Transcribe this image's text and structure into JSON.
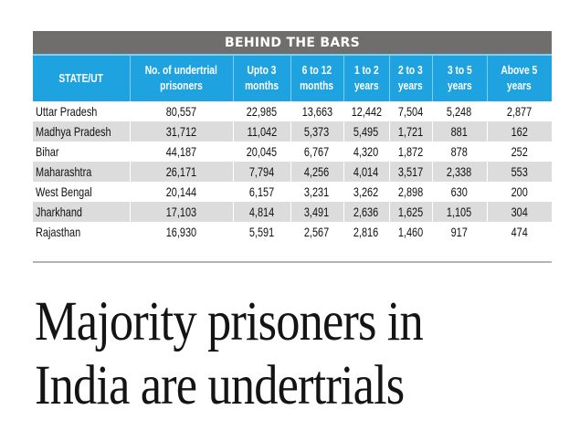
{
  "table": {
    "title": "BEHIND THE BARS",
    "header_color": "#1fa3e0",
    "title_bar_color": "#6f6e6c",
    "columns": [
      "STATE/UT",
      [
        "No. of undertrial",
        "prisoners"
      ],
      [
        "Upto 3",
        "months"
      ],
      [
        "6 to 12",
        "months"
      ],
      [
        "1 to 2",
        "years"
      ],
      [
        "2 to 3",
        "years"
      ],
      [
        "3 to 5",
        "years"
      ],
      [
        "Above 5",
        "years"
      ]
    ],
    "rows": [
      [
        "Uttar Pradesh",
        "80,557",
        "22,985",
        "13,663",
        "12,442",
        "7,504",
        "5,248",
        "2,877"
      ],
      [
        "Madhya Pradesh",
        "31,712",
        "11,042",
        "5,373",
        "5,495",
        "1,721",
        "881",
        "162"
      ],
      [
        "Bihar",
        "44,187",
        "20,045",
        "6,767",
        "4,320",
        "1,872",
        "878",
        "252"
      ],
      [
        "Maharashtra",
        "26,171",
        "7,794",
        "4,256",
        "4,014",
        "3,517",
        "2,338",
        "553"
      ],
      [
        "West Bengal",
        "20,144",
        "6,157",
        "3,231",
        "3,262",
        "2,898",
        "630",
        "200"
      ],
      [
        "Jharkhand",
        "17,103",
        "4,814",
        "3,491",
        "2,636",
        "1,625",
        "1,105",
        "304"
      ],
      [
        "Rajasthan",
        "16,930",
        "5,591",
        "2,567",
        "2,816",
        "1,460",
        "917",
        "474"
      ]
    ]
  },
  "headline": {
    "line1": "Majority prisoners in",
    "line2": "India are undertrials"
  }
}
